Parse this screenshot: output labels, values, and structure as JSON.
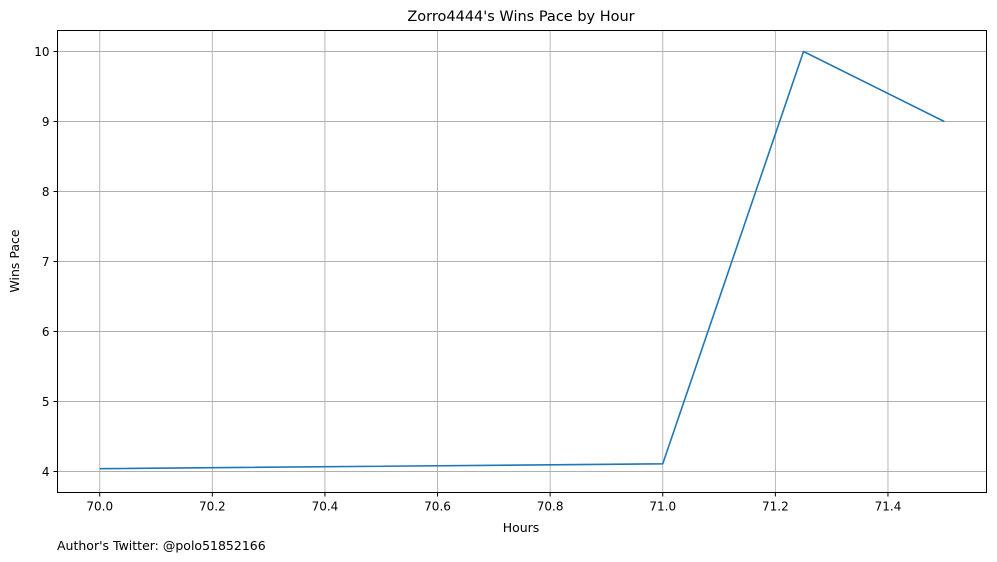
{
  "chart_data": {
    "type": "line",
    "title": "Zorro4444's Wins Pace by Hour",
    "xlabel": "Hours",
    "ylabel": "Wins Pace",
    "x": [
      70.0,
      71.0,
      71.25,
      71.5
    ],
    "series": [
      {
        "values": [
          4.04,
          4.11,
          10.0,
          9.0
        ],
        "color": "#1f77b4"
      }
    ],
    "xlim": [
      69.925,
      71.575
    ],
    "ylim": [
      3.7,
      10.3
    ],
    "x_ticks": [
      70.0,
      70.2,
      70.4,
      70.6,
      70.8,
      71.0,
      71.2,
      71.4
    ],
    "x_tick_labels": [
      "70.0",
      "70.2",
      "70.4",
      "70.6",
      "70.8",
      "71.0",
      "71.2",
      "71.4"
    ],
    "y_ticks": [
      4,
      5,
      6,
      7,
      8,
      9,
      10
    ],
    "y_tick_labels": [
      "4",
      "5",
      "6",
      "7",
      "8",
      "9",
      "10"
    ],
    "grid": true,
    "grid_color": "#b0b0b0"
  },
  "footnote": "Author's Twitter: @polo51852166"
}
